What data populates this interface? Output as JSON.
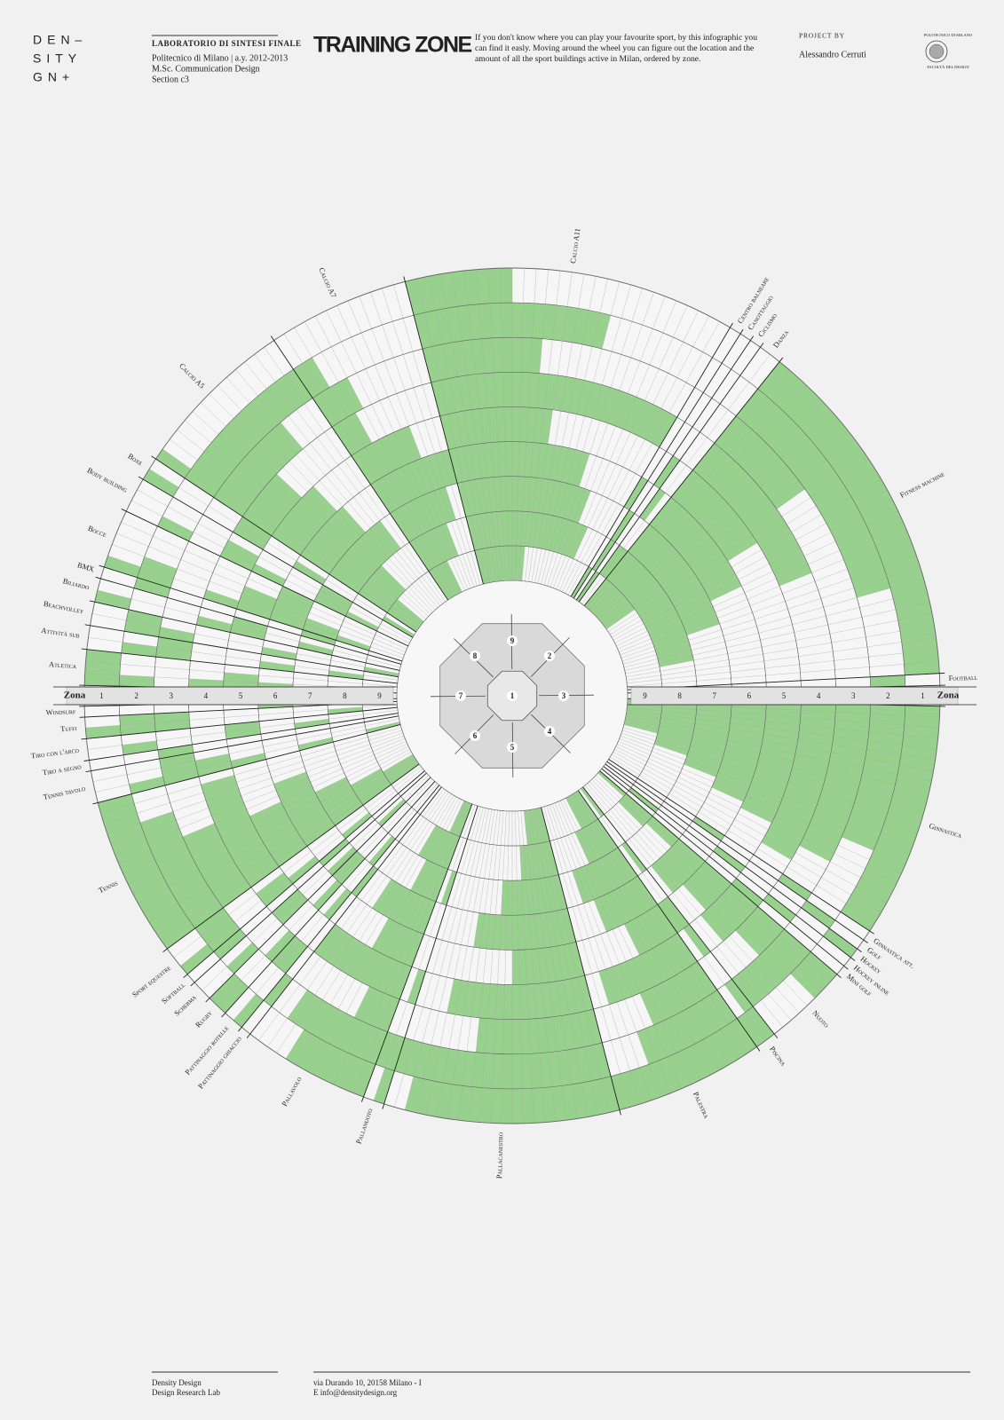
{
  "header": {
    "logo": [
      "DEN–",
      "SITY",
      "GN+"
    ],
    "course": "LABORATORIO DI SINTESI FINALE",
    "course_lines": [
      "Politecnico di Milano | a.y. 2012-2013",
      "M.Sc. Communication Design",
      "Section c3"
    ],
    "title": "TRAINING ZONE",
    "description": [
      "If you don't know where you can play your favourite sport, by this infographic you",
      "can find it easly. Moving around the wheel you can figure out the location and the",
      "amount of all the sport buildings active in Milan, ordered by zone."
    ],
    "project_label": "PROJECT BY",
    "author": "Alessandro Cerruti",
    "seal_top": "POLITECNICO DI MILANO",
    "seal_bottom": "FACOLTÀ DEL DESIGN"
  },
  "footer": {
    "left": [
      "Density Design",
      "Design Research Lab"
    ],
    "right": [
      "via Durando 10, 20158 Milano - I",
      "E info@densitydesign.org"
    ]
  },
  "chart_data": {
    "type": "radial",
    "zone_label": "Zona",
    "zones": [
      1,
      2,
      3,
      4,
      5,
      6,
      7,
      8,
      9
    ],
    "color": "#97d18d",
    "groups": [
      {
        "sports": [
          {
            "name": "Atletica",
            "values": [
              3,
              1,
              0,
              1,
              2,
              1,
              0,
              1,
              0
            ]
          },
          {
            "name": "Attività sub",
            "values": [
              0,
              1,
              2,
              0,
              0,
              1,
              0,
              1,
              0
            ]
          },
          {
            "name": "Beachvolley",
            "values": [
              0,
              2,
              1,
              0,
              0,
              1,
              0,
              0,
              1
            ]
          },
          {
            "name": "Biliardo",
            "values": [
              1,
              0,
              0,
              1,
              2,
              0,
              1,
              0,
              0
            ]
          },
          {
            "name": "BMX",
            "values": [
              0,
              1,
              0,
              0,
              0,
              0,
              1,
              0,
              0
            ]
          },
          {
            "name": "Bocce",
            "values": [
              1,
              2,
              0,
              1,
              3,
              5,
              2,
              1,
              0
            ]
          },
          {
            "name": "Body building",
            "values": [
              0,
              1,
              0,
              2,
              1,
              0,
              3,
              1,
              0
            ]
          },
          {
            "name": "Boxe",
            "values": [
              1,
              0,
              0,
              2,
              0,
              1,
              0,
              0,
              1
            ]
          },
          {
            "name": "Calcio A5",
            "values": [
              1,
              14,
              10,
              6,
              8,
              9,
              12,
              7,
              4
            ]
          },
          {
            "name": "Calcio A7",
            "values": [
              0,
              2,
              4,
              3,
              8,
              12,
              10,
              8,
              5
            ]
          },
          {
            "name": "Calcio A11",
            "values": [
              9,
              18,
              12,
              28,
              14,
              20,
              22,
              24,
              12
            ]
          },
          {
            "name": "Centro balneare",
            "values": [
              0,
              0,
              0,
              0,
              0,
              1,
              0,
              0,
              1
            ]
          },
          {
            "name": "Canottaggio",
            "values": [
              0,
              0,
              0,
              0,
              0,
              0,
              1,
              1,
              0
            ]
          },
          {
            "name": "Ciclismo",
            "values": [
              0,
              0,
              0,
              0,
              1,
              0,
              0,
              0,
              1
            ]
          },
          {
            "name": "Danza",
            "values": [
              0,
              0,
              0,
              0,
              0,
              1,
              0,
              2,
              0
            ]
          },
          {
            "name": "Fitness machine",
            "values": [
              30,
              22,
              10,
              18,
              12,
              16,
              20,
              25,
              10
            ]
          },
          {
            "name": "Football",
            "values": [
              0,
              1,
              0,
              0,
              0,
              0,
              0,
              1,
              0
            ]
          }
        ]
      },
      {
        "sports": [
          {
            "name": "Ginnastica",
            "values": [
              22,
              15,
              18,
              20,
              17,
              16,
              14,
              12,
              9
            ]
          },
          {
            "name": "Ginnastica att.",
            "values": [
              0,
              0,
              1,
              0,
              0,
              1,
              0,
              0,
              0
            ]
          },
          {
            "name": "Golf",
            "values": [
              0,
              1,
              0,
              0,
              0,
              0,
              0,
              0,
              0
            ]
          },
          {
            "name": "Hockey",
            "values": [
              1,
              0,
              0,
              0,
              1,
              0,
              0,
              0,
              0
            ]
          },
          {
            "name": "Hockey inline",
            "values": [
              0,
              0,
              1,
              0,
              0,
              0,
              0,
              1,
              0
            ]
          },
          {
            "name": "Mini golf",
            "values": [
              0,
              0,
              0,
              1,
              0,
              0,
              0,
              0,
              0
            ]
          },
          {
            "name": "Nuoto",
            "values": [
              3,
              8,
              4,
              6,
              5,
              7,
              2,
              3,
              1
            ]
          },
          {
            "name": "Piscina",
            "values": [
              2,
              1,
              0,
              1,
              2,
              0,
              1,
              0,
              1
            ]
          },
          {
            "name": "Palestra",
            "values": [
              14,
              10,
              8,
              12,
              6,
              9,
              11,
              7,
              5
            ]
          },
          {
            "name": "Pallacanestro",
            "values": [
              20,
              22,
              14,
              18,
              10,
              16,
              12,
              8,
              6
            ]
          },
          {
            "name": "Pallanuoto",
            "values": [
              1,
              2,
              0,
              1,
              0,
              0,
              1,
              0,
              0
            ]
          },
          {
            "name": "Pallavolo",
            "values": [
              8,
              10,
              4,
              12,
              6,
              9,
              5,
              7,
              3
            ]
          },
          {
            "name": "Pattinaggio ghiaccio",
            "values": [
              0,
              1,
              0,
              0,
              0,
              1,
              0,
              0,
              0
            ]
          },
          {
            "name": "Pattinaggio rotelle",
            "values": [
              1,
              0,
              2,
              0,
              1,
              0,
              1,
              0,
              0
            ]
          },
          {
            "name": "Rugby",
            "values": [
              2,
              0,
              1,
              0,
              1,
              2,
              0,
              0,
              0
            ]
          },
          {
            "name": "Scherma",
            "values": [
              0,
              1,
              0,
              2,
              0,
              1,
              0,
              1,
              0
            ]
          },
          {
            "name": "Softball",
            "values": [
              0,
              1,
              0,
              0,
              0,
              1,
              0,
              0,
              0
            ]
          },
          {
            "name": "Sport equestre",
            "values": [
              1,
              3,
              0,
              2,
              1,
              0,
              1,
              0,
              0
            ]
          },
          {
            "name": "Tennis",
            "values": [
              15,
              12,
              9,
              14,
              8,
              11,
              7,
              5,
              4
            ]
          },
          {
            "name": "Tennis tavolo",
            "values": [
              0,
              1,
              3,
              2,
              1,
              0,
              1,
              0,
              1
            ]
          },
          {
            "name": "Tiro a segno",
            "values": [
              0,
              0,
              1,
              0,
              0,
              0,
              0,
              0,
              0
            ]
          },
          {
            "name": "Tiro con l'arco",
            "values": [
              0,
              1,
              0,
              0,
              2,
              0,
              1,
              0,
              0
            ]
          },
          {
            "name": "Tuffi",
            "values": [
              1,
              2,
              2,
              0,
              0,
              0,
              0,
              1,
              0
            ]
          },
          {
            "name": "Windsurf",
            "values": [
              0,
              0,
              0,
              0,
              0,
              1,
              0,
              0,
              0
            ]
          }
        ]
      }
    ]
  }
}
